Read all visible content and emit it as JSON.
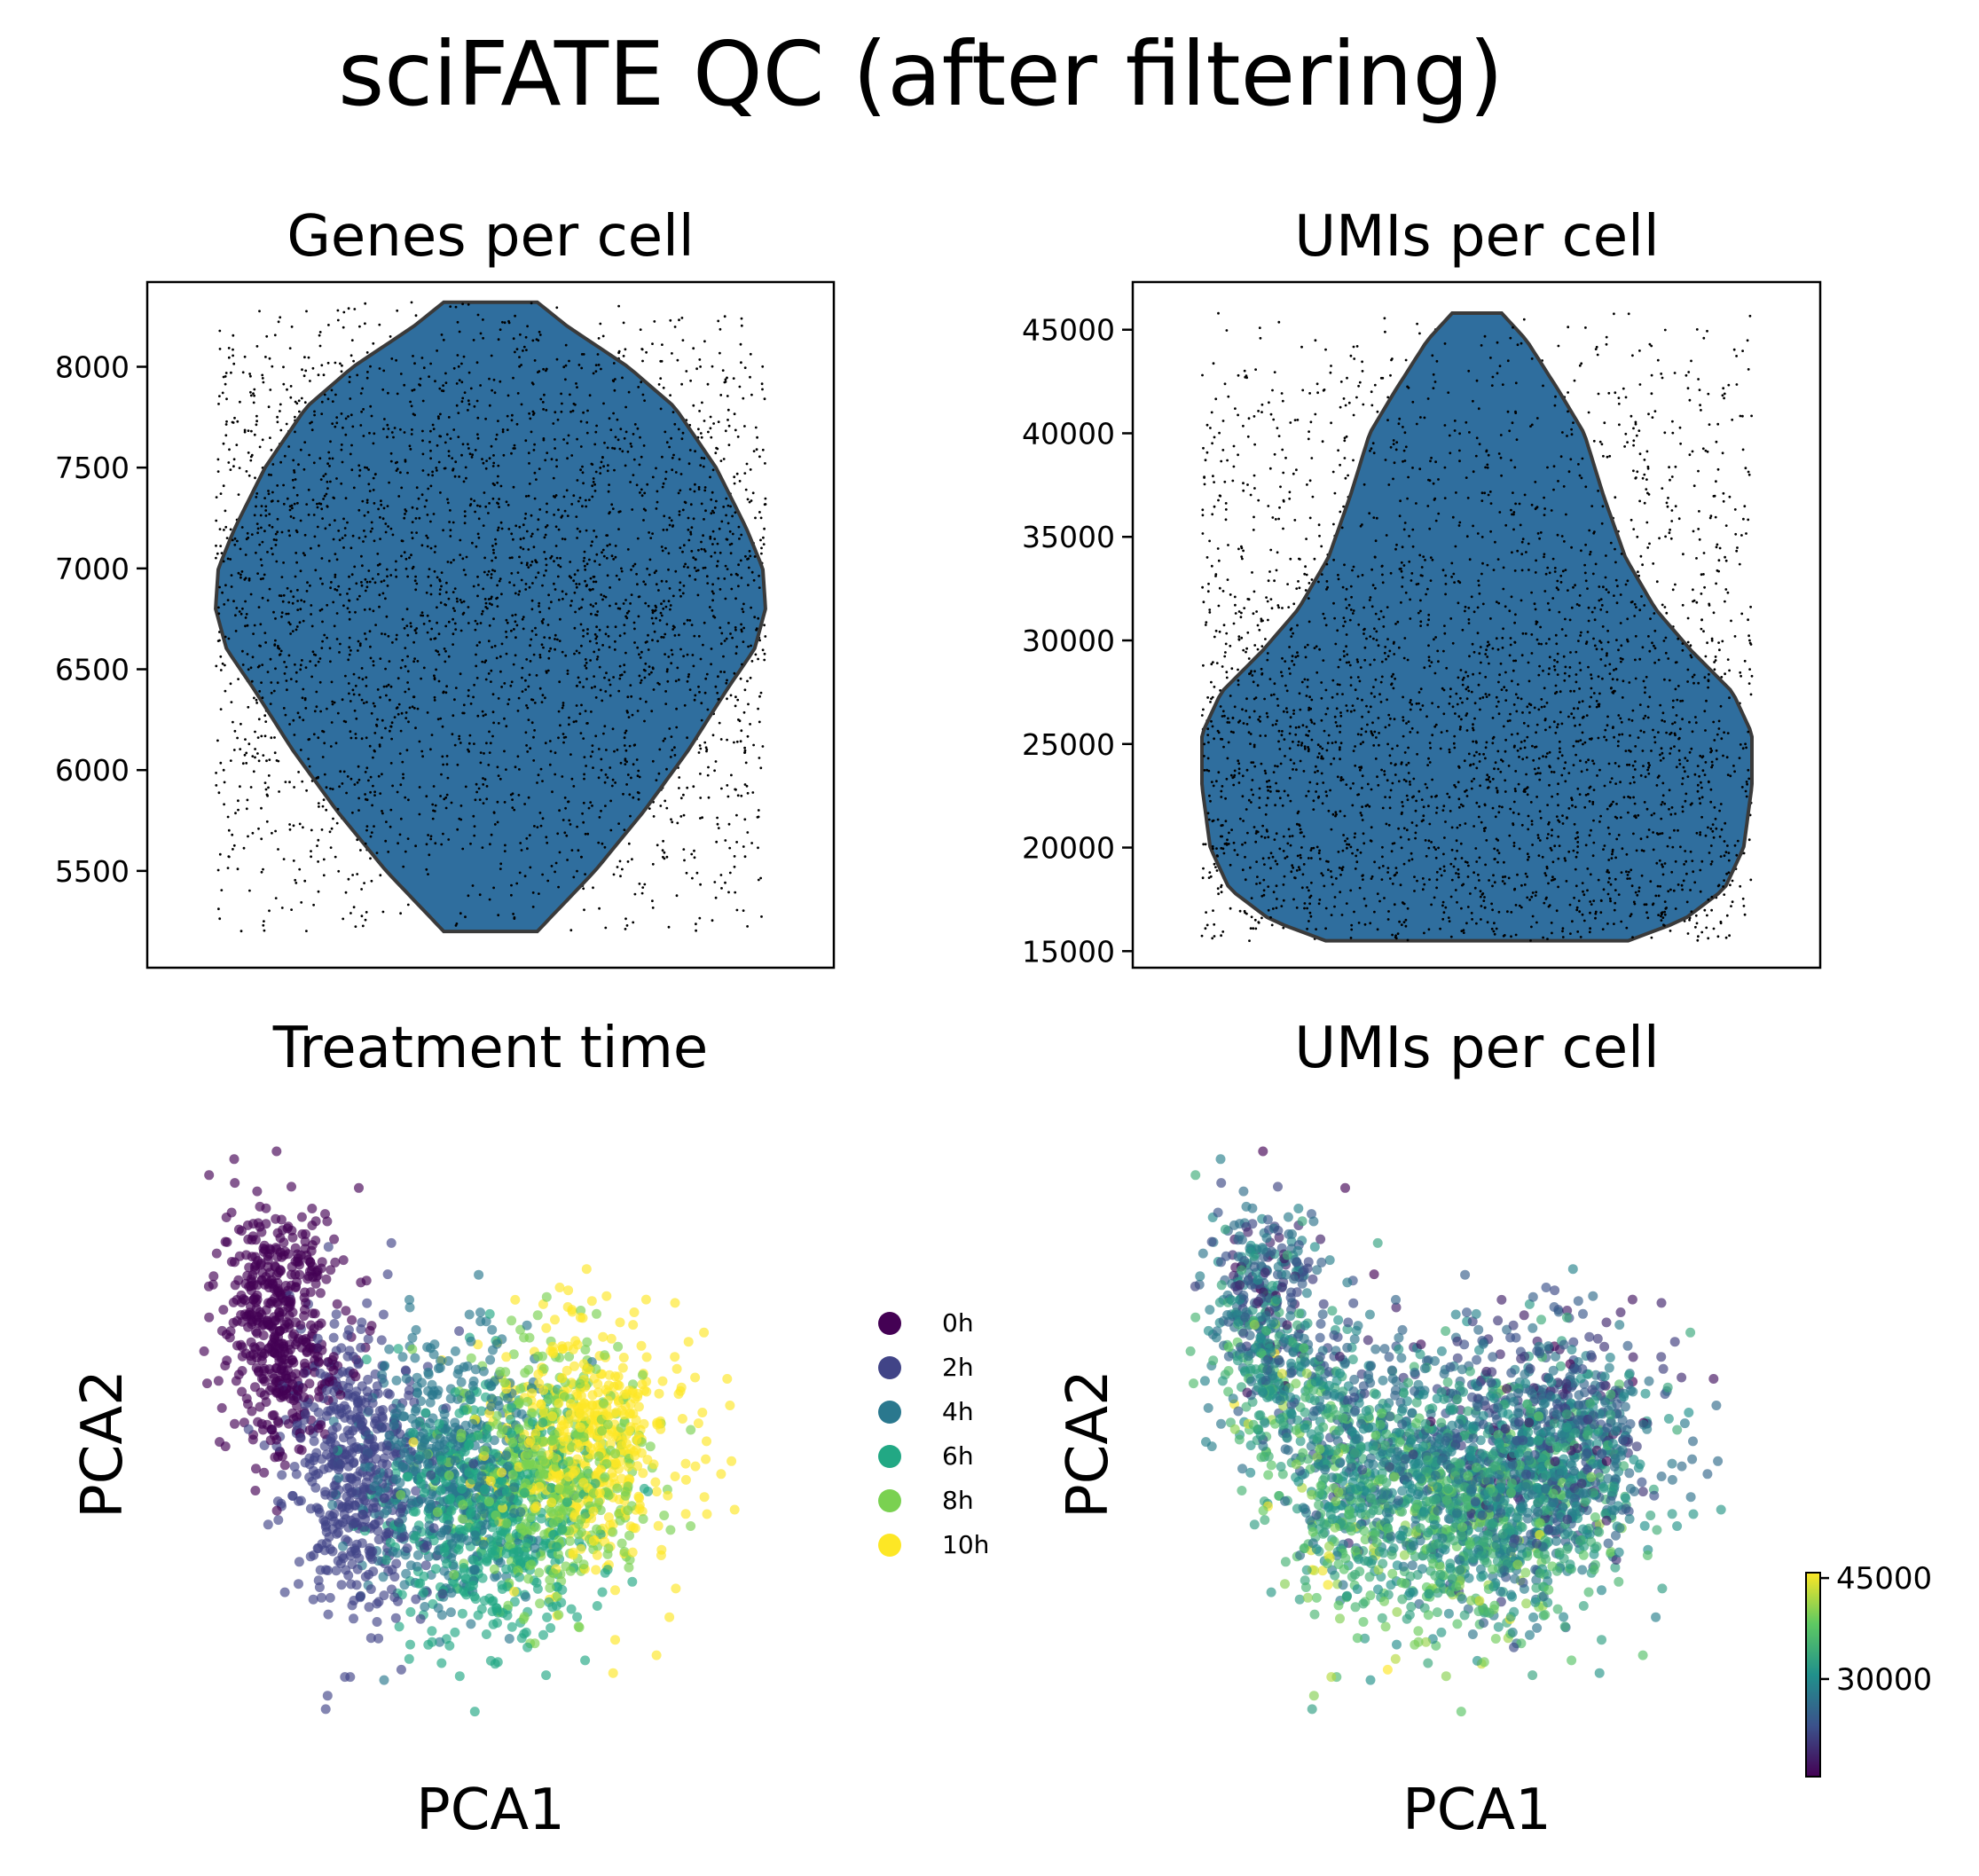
{
  "figure": {
    "title": "sciFATE QC (after filtering)"
  },
  "colors": {
    "violin_fill": "#2f6e9e",
    "violin_edge": "#3a3a3a",
    "timepoints": [
      "#440154",
      "#414487",
      "#2a788e",
      "#22a884",
      "#7ad151",
      "#fde725"
    ]
  },
  "chart_data": [
    {
      "type": "violin",
      "title": "Genes per cell",
      "xlabel": "",
      "ylabel": "",
      "ylim": [
        5020,
        8420
      ],
      "yticks": [
        5500,
        6000,
        6500,
        7000,
        7500,
        8000
      ],
      "ytick_labels": [
        "5500",
        "6000",
        "6500",
        "7000",
        "7500",
        "8000"
      ],
      "data_range": [
        5200,
        8320
      ],
      "n_cells_approx": 3000,
      "density_profile": [
        [
          5200,
          0.17
        ],
        [
          5500,
          0.38
        ],
        [
          5800,
          0.56
        ],
        [
          6100,
          0.72
        ],
        [
          6400,
          0.86
        ],
        [
          6600,
          0.96
        ],
        [
          6800,
          1.0
        ],
        [
          7000,
          0.99
        ],
        [
          7200,
          0.93
        ],
        [
          7500,
          0.82
        ],
        [
          7800,
          0.67
        ],
        [
          8000,
          0.5
        ],
        [
          8200,
          0.28
        ],
        [
          8320,
          0.17
        ]
      ],
      "stripplot": true
    },
    {
      "type": "violin",
      "title": "UMIs per cell",
      "xlabel": "",
      "ylabel": "",
      "ylim": [
        14200,
        47300
      ],
      "yticks": [
        15000,
        20000,
        25000,
        30000,
        35000,
        40000,
        45000
      ],
      "ytick_labels": [
        "15000",
        "20000",
        "25000",
        "30000",
        "35000",
        "40000",
        "45000"
      ],
      "data_range": [
        15500,
        45800
      ],
      "n_cells_approx": 3000,
      "density_profile": [
        [
          15500,
          0.55
        ],
        [
          16500,
          0.75
        ],
        [
          18000,
          0.9
        ],
        [
          20000,
          0.97
        ],
        [
          23000,
          1.0
        ],
        [
          25500,
          1.0
        ],
        [
          27500,
          0.93
        ],
        [
          29500,
          0.78
        ],
        [
          31500,
          0.65
        ],
        [
          34000,
          0.54
        ],
        [
          37000,
          0.46
        ],
        [
          40000,
          0.39
        ],
        [
          42000,
          0.3
        ],
        [
          44500,
          0.18
        ],
        [
          45800,
          0.09
        ]
      ],
      "stripplot": true
    },
    {
      "type": "scatter",
      "title": "Treatment time",
      "xlabel": "PCA1",
      "ylabel": "PCA2",
      "legend": {
        "placement": "right",
        "entries": [
          "0h",
          "2h",
          "4h",
          "6h",
          "8h",
          "10h"
        ]
      },
      "grid": false,
      "n_points_approx": 3000,
      "series": [
        {
          "name": "0h",
          "center": [
            -0.72,
            0.35
          ],
          "spread": [
            0.17,
            0.4
          ]
        },
        {
          "name": "2h",
          "center": [
            -0.45,
            -0.15
          ],
          "spread": [
            0.22,
            0.45
          ]
        },
        {
          "name": "4h",
          "center": [
            -0.15,
            -0.15
          ],
          "spread": [
            0.28,
            0.4
          ]
        },
        {
          "name": "6h",
          "center": [
            0.0,
            -0.3
          ],
          "spread": [
            0.3,
            0.4
          ]
        },
        {
          "name": "8h",
          "center": [
            0.2,
            -0.15
          ],
          "spread": [
            0.3,
            0.38
          ]
        },
        {
          "name": "10h",
          "center": [
            0.35,
            -0.05
          ],
          "spread": [
            0.3,
            0.36
          ]
        }
      ]
    },
    {
      "type": "scatter",
      "title": "UMIs per cell",
      "xlabel": "PCA1",
      "ylabel": "PCA2",
      "colorbar": {
        "cmap": "viridis",
        "vmin": 15500,
        "vmax": 45800,
        "ticks": [
          30000,
          45000
        ],
        "tick_labels": [
          "30000",
          "45000"
        ]
      },
      "grid": false,
      "n_points_approx": 3000
    }
  ]
}
